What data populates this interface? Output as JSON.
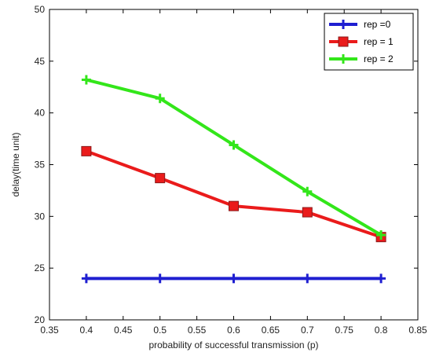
{
  "chart_data": {
    "type": "line",
    "xlabel": "probability of successful transmission (p)",
    "ylabel": "delay(time unit)",
    "xlim": [
      0.35,
      0.85
    ],
    "ylim": [
      20,
      50
    ],
    "xticks": [
      "0.35",
      "0.4",
      "0.45",
      "0.5",
      "0.55",
      "0.6",
      "0.65",
      "0.7",
      "0.75",
      "0.8",
      "0.85"
    ],
    "yticks": [
      "20",
      "25",
      "30",
      "35",
      "40",
      "45",
      "50"
    ],
    "grid": false,
    "legend_position": "top-right",
    "x": [
      0.4,
      0.5,
      0.6,
      0.7,
      0.8
    ],
    "series": [
      {
        "name": "rep =0",
        "values": [
          24.0,
          24.0,
          24.0,
          24.0,
          24.0
        ],
        "color": "#1f1fd1",
        "marker": "plus"
      },
      {
        "name": "rep = 1",
        "values": [
          36.3,
          33.7,
          31.0,
          30.4,
          28.0
        ],
        "color": "#ea1b1b",
        "marker": "square"
      },
      {
        "name": "rep = 2",
        "values": [
          43.2,
          41.4,
          36.9,
          32.4,
          28.2
        ],
        "color": "#33e61a",
        "marker": "plus"
      }
    ]
  }
}
